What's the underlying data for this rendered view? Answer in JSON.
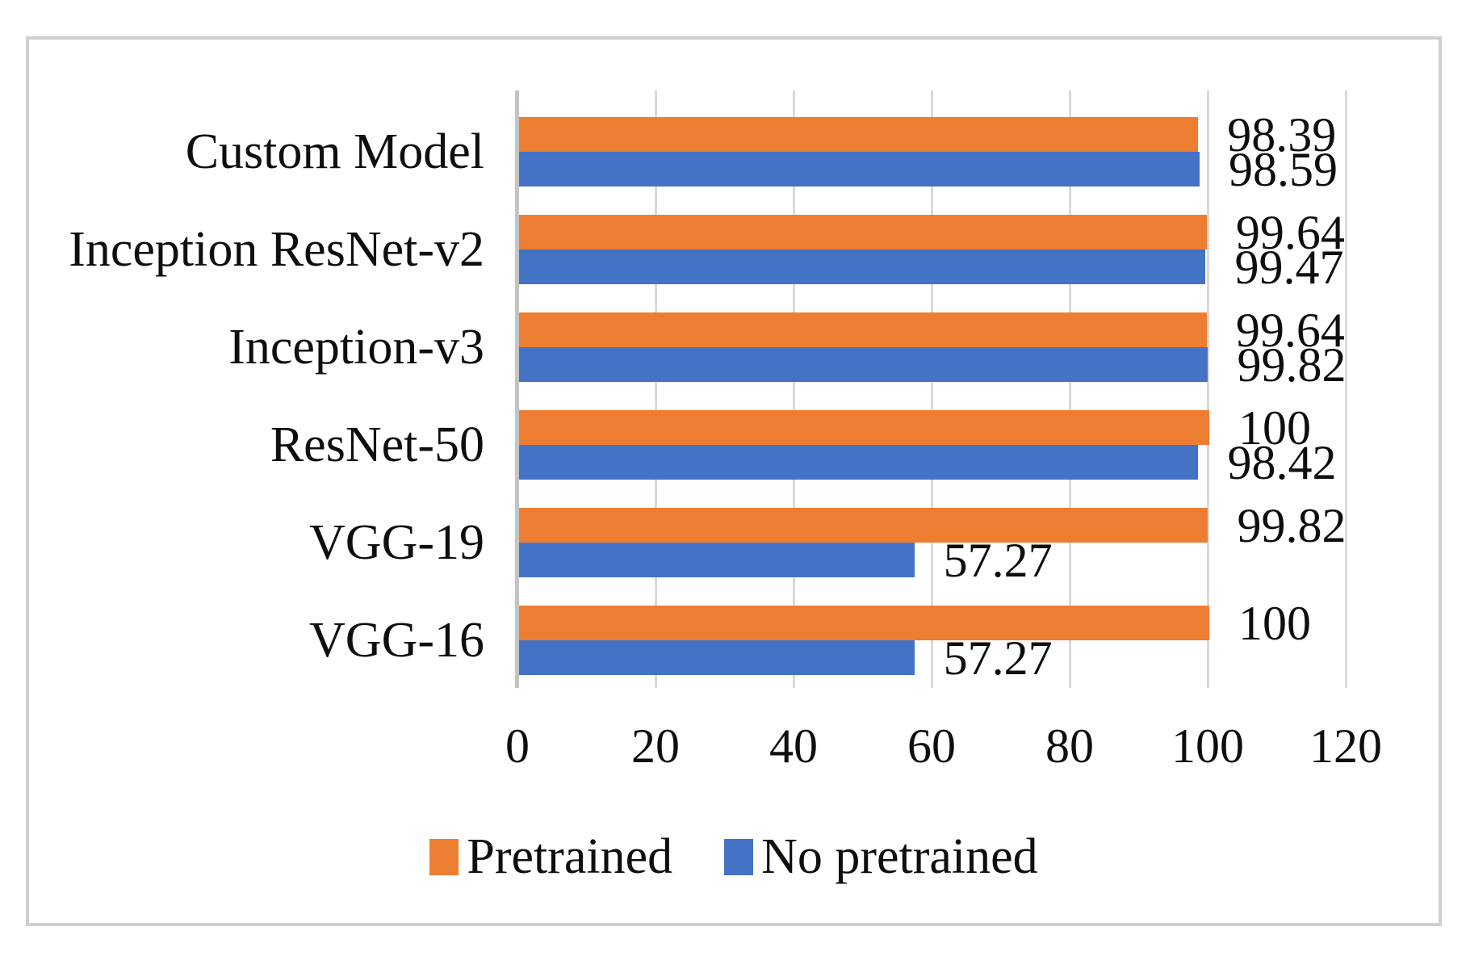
{
  "figure": {
    "frame_border_color": "#cfcfcf",
    "background": "#ffffff"
  },
  "chart_data": {
    "type": "bar",
    "orientation": "horizontal",
    "title": "",
    "xlabel": "",
    "ylabel": "",
    "categories": [
      "Custom Model",
      "Inception ResNet-v2",
      "Inception-v3",
      "ResNet-50",
      "VGG-19",
      "VGG-16"
    ],
    "series": [
      {
        "name": "Pretrained",
        "color": "#ed7d31",
        "values": [
          98.39,
          99.64,
          99.64,
          100,
          99.82,
          100
        ],
        "labels": [
          "98.39",
          "99.64",
          "99.64",
          "100",
          "99.82",
          "100"
        ]
      },
      {
        "name": "No pretrained",
        "color": "#4472c4",
        "values": [
          98.59,
          99.47,
          99.82,
          98.42,
          57.27,
          57.27
        ],
        "labels": [
          "98.59",
          "99.47",
          "99.82",
          "98.42",
          "57.27",
          "57.27"
        ]
      }
    ],
    "axis": {
      "min": 0,
      "max": 120,
      "step": 20,
      "tick_labels": [
        "0",
        "20",
        "40",
        "60",
        "80",
        "100",
        "120"
      ]
    },
    "grid": true,
    "legend_position": "bottom",
    "colors": {
      "gridline": "#d9d9d9",
      "axis_line": "#c4c4c4",
      "text": "#0e0e0e"
    }
  }
}
